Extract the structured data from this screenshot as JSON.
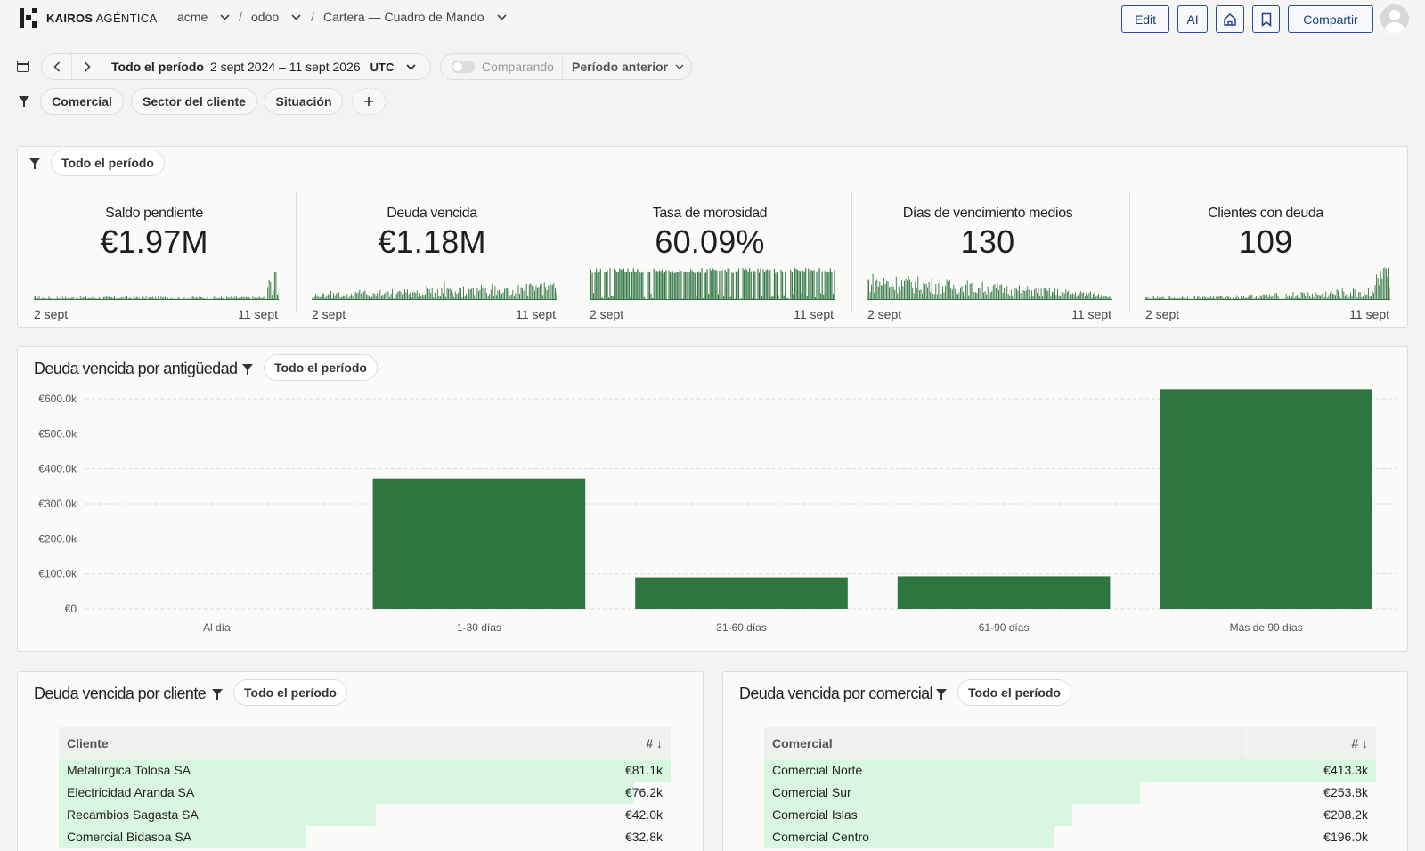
{
  "brand": {
    "name_bold": "KAIROS",
    "name_light": "AGÉNTICA"
  },
  "breadcrumb": {
    "org": "acme",
    "project": "odoo",
    "dashboard": "Cartera — Cuadro de Mando"
  },
  "toolbar": {
    "edit": "Edit",
    "ai": "AI",
    "share": "Compartir"
  },
  "period": {
    "label": "Todo el período",
    "range": "2 sept 2024 – 11 sept 2026",
    "tz": "UTC"
  },
  "compare": {
    "label": "Comparando",
    "previous": "Período anterior"
  },
  "filters": [
    "Comercial",
    "Sector del cliente",
    "Situación"
  ],
  "kpi_panel": {
    "chip": "Todo el período",
    "cards": [
      {
        "title": "Saldo pendiente",
        "value": "€1.97M",
        "from": "2 sept",
        "to": "11 sept"
      },
      {
        "title": "Deuda vencida",
        "value": "€1.18M",
        "from": "2 sept",
        "to": "11 sept"
      },
      {
        "title": "Tasa de morosidad",
        "value": "60.09%",
        "from": "2 sept",
        "to": "11 sept"
      },
      {
        "title": "Días de vencimiento medios",
        "value": "130",
        "from": "2 sept",
        "to": "11 sept"
      },
      {
        "title": "Clientes con deuda",
        "value": "109",
        "from": "2 sept",
        "to": "11 sept"
      }
    ]
  },
  "aging_panel": {
    "title": "Deuda vencida por antigüedad",
    "chip": "Todo el período"
  },
  "chart_data": {
    "type": "bar",
    "title": "Deuda vencida por antigüedad",
    "categories": [
      "Al día",
      "1-30 días",
      "31-60 días",
      "61-90 días",
      "Más de 90 días"
    ],
    "values": [
      0,
      372000,
      90000,
      93000,
      627000
    ],
    "ylim": [
      0,
      600000
    ],
    "yticks": [
      "€0",
      "€100.0k",
      "€200.0k",
      "€300.0k",
      "€400.0k",
      "€500.0k",
      "€600.0k"
    ],
    "grid": true,
    "color": "#2e7540"
  },
  "client_panel": {
    "title": "Deuda vencida por cliente",
    "chip": "Todo el período",
    "col_name": "Cliente",
    "col_value": "#",
    "rows": [
      {
        "name": "Metalúrgica Tolosa SA",
        "value": "€81.1k",
        "share": 1.0
      },
      {
        "name": "Electricidad Aranda SA",
        "value": "€76.2k",
        "share": 0.94
      },
      {
        "name": "Recambios Sagasta SA",
        "value": "€42.0k",
        "share": 0.518
      },
      {
        "name": "Comercial Bidasoa SA",
        "value": "€32.8k",
        "share": 0.404
      }
    ]
  },
  "sales_panel": {
    "title": "Deuda vencida por comercial",
    "chip": "Todo el período",
    "col_name": "Comercial",
    "col_value": "#",
    "rows": [
      {
        "name": "Comercial Norte",
        "value": "€413.3k",
        "share": 1.0
      },
      {
        "name": "Comercial Sur",
        "value": "€253.8k",
        "share": 0.614
      },
      {
        "name": "Comercial Islas",
        "value": "€208.2k",
        "share": 0.504
      },
      {
        "name": "Comercial Centro",
        "value": "€196.0k",
        "share": 0.474
      }
    ]
  },
  "colors": {
    "accent": "#2e7540",
    "button_border": "#2a4d8f",
    "row_bar": "#d9f7e0"
  }
}
